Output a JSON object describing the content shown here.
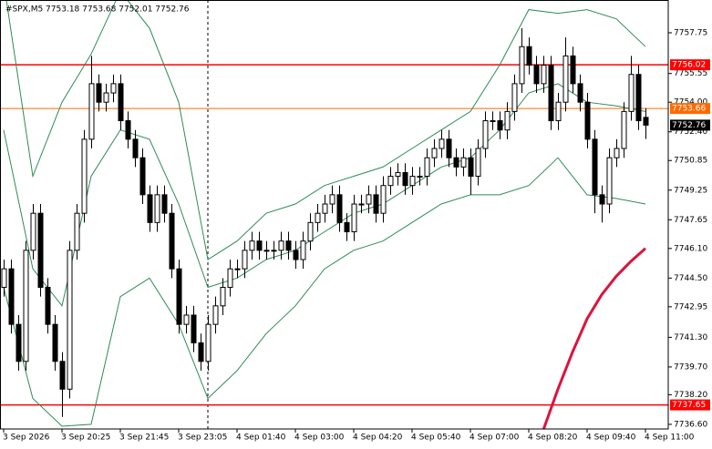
{
  "chart_data": {
    "type": "candlestick",
    "title": "#SPX,M5 7753.18 7753.68 7752.01 7752.76",
    "categories": [
      "3 Sep 2026",
      null,
      null,
      null,
      null,
      null,
      null,
      null,
      "3 Sep 20:25",
      null,
      null,
      null,
      null,
      null,
      null,
      null,
      "3 Sep 21:45",
      null,
      null,
      null,
      null,
      null,
      null,
      null,
      "3 Sep 23:05",
      null,
      null,
      null,
      null,
      null,
      null,
      null,
      "4 Sep 01:40",
      null,
      null,
      null,
      null,
      null,
      null,
      null,
      "4 Sep 03:00",
      null,
      null,
      null,
      null,
      null,
      null,
      null,
      "4 Sep 04:20",
      null,
      null,
      null,
      null,
      null,
      null,
      null,
      "4 Sep 05:40",
      null,
      null,
      null,
      null,
      null,
      null,
      null,
      "4 Sep 07:00",
      null,
      null,
      null,
      null,
      null,
      null,
      null,
      "4 Sep 08:20",
      null,
      null,
      null,
      null,
      null,
      null,
      null,
      "4 Sep 09:40",
      null,
      null,
      null,
      null,
      null,
      null,
      null,
      "4 Sep 11:00"
    ],
    "ohlc": [
      [
        7744,
        7745.5,
        7743.5,
        7745
      ],
      [
        7745,
        7745.5,
        7741.5,
        7742
      ],
      [
        7742,
        7742.5,
        7739.5,
        7740
      ],
      [
        7740,
        7746.5,
        7739.5,
        7746
      ],
      [
        7746,
        7748.5,
        7745.5,
        7748
      ],
      [
        7748,
        7748.5,
        7743.5,
        7744
      ],
      [
        7744,
        7744.5,
        7741.5,
        7742
      ],
      [
        7742,
        7742.5,
        7739.5,
        7740
      ],
      [
        7740,
        7740.5,
        7737,
        7738.5
      ],
      [
        7738.5,
        7746.5,
        7738,
        7746
      ],
      [
        7746,
        7748.5,
        7745.5,
        7748
      ],
      [
        7748,
        7752.5,
        7747.5,
        7752
      ],
      [
        7752,
        7756.5,
        7751.5,
        7755
      ],
      [
        7755,
        7755.5,
        7753.5,
        7754
      ],
      [
        7754,
        7755,
        7753.5,
        7754.5
      ],
      [
        7754.5,
        7755.5,
        7754,
        7755
      ],
      [
        7755,
        7755.5,
        7752.5,
        7753
      ],
      [
        7753,
        7753.5,
        7751.5,
        7752
      ],
      [
        7752,
        7752.5,
        7750.5,
        7751
      ],
      [
        7751,
        7751.5,
        7748.5,
        7749
      ],
      [
        7749,
        7749.5,
        7747,
        7747.5
      ],
      [
        7747.5,
        7749.5,
        7747,
        7749
      ],
      [
        7749,
        7749.5,
        7747.5,
        7748
      ],
      [
        7748,
        7748.5,
        7744.5,
        7745
      ],
      [
        7745,
        7745.5,
        7741.5,
        7742
      ],
      [
        7742,
        7743,
        7741.5,
        7742.5
      ],
      [
        7742.5,
        7743,
        7740.5,
        7741
      ],
      [
        7741,
        7741.5,
        7739.5,
        7740
      ],
      [
        7740,
        7742.5,
        7739.5,
        7742
      ],
      [
        7742,
        7743.5,
        7741.5,
        7743
      ],
      [
        7743,
        7744.5,
        7742.5,
        7744
      ],
      [
        7744,
        7745.5,
        7743.5,
        7745
      ],
      [
        7745,
        7745.5,
        7744.5,
        7745
      ],
      [
        7745,
        7746.5,
        7744.5,
        7746
      ],
      [
        7746,
        7747,
        7745.5,
        7746.5
      ],
      [
        7746.5,
        7747,
        7745.5,
        7746
      ],
      [
        7746,
        7746.5,
        7745.5,
        7746
      ],
      [
        7746,
        7746.5,
        7745.5,
        7746
      ],
      [
        7746,
        7747,
        7745.5,
        7746.5
      ],
      [
        7746.5,
        7747,
        7745.5,
        7746
      ],
      [
        7746,
        7746.5,
        7745,
        7745.5
      ],
      [
        7745.5,
        7747,
        7745,
        7746.5
      ],
      [
        7746.5,
        7748,
        7746,
        7747.5
      ],
      [
        7747.5,
        7748.5,
        7747,
        7748
      ],
      [
        7748,
        7749,
        7747.5,
        7748.5
      ],
      [
        7748.5,
        7749.5,
        7748,
        7749
      ],
      [
        7749,
        7749.5,
        7747,
        7747.5
      ],
      [
        7747.5,
        7748,
        7746.5,
        7747
      ],
      [
        7747,
        7749,
        7746.5,
        7748.5
      ],
      [
        7748.5,
        7749,
        7748,
        7748.5
      ],
      [
        7748.5,
        7749.5,
        7748,
        7749
      ],
      [
        7749,
        7749.5,
        7747.5,
        7748
      ],
      [
        7748,
        7750,
        7747.5,
        7749.5
      ],
      [
        7749.5,
        7750.5,
        7749,
        7750
      ],
      [
        7750,
        7750.7,
        7749.5,
        7750.2
      ],
      [
        7750.2,
        7750.7,
        7749,
        7749.5
      ],
      [
        7749.5,
        7750.5,
        7749,
        7750
      ],
      [
        7750,
        7750.5,
        7749.5,
        7750
      ],
      [
        7750,
        7751.5,
        7749.5,
        7751
      ],
      [
        7751,
        7752,
        7750.5,
        7751.5
      ],
      [
        7751.5,
        7752.5,
        7751,
        7752
      ],
      [
        7752,
        7752.5,
        7750.5,
        7751
      ],
      [
        7751,
        7751.5,
        7750,
        7750.5
      ],
      [
        7750.5,
        7751.5,
        7750,
        7751
      ],
      [
        7751,
        7751.5,
        7749,
        7750
      ],
      [
        7750,
        7752,
        7749.5,
        7751.5
      ],
      [
        7751.5,
        7753.5,
        7751,
        7753
      ],
      [
        7753,
        7753.5,
        7752.5,
        7753
      ],
      [
        7753,
        7753.5,
        7752,
        7752.5
      ],
      [
        7752.5,
        7754,
        7752,
        7753.5
      ],
      [
        7753.5,
        7755.5,
        7753,
        7755
      ],
      [
        7755,
        7758,
        7754.5,
        7757
      ],
      [
        7757,
        7757.5,
        7755.5,
        7756
      ],
      [
        7756,
        7756.5,
        7754.5,
        7755
      ],
      [
        7755,
        7756.5,
        7754.5,
        7756
      ],
      [
        7756,
        7756.5,
        7752.5,
        7753
      ],
      [
        7753,
        7754.5,
        7752.5,
        7754
      ],
      [
        7754,
        7757.5,
        7753.5,
        7756.5
      ],
      [
        7756.5,
        7757,
        7754.5,
        7755
      ],
      [
        7755,
        7755.5,
        7753.5,
        7754
      ],
      [
        7754,
        7754.5,
        7751.5,
        7752
      ],
      [
        7752,
        7752.5,
        7748,
        7749
      ],
      [
        7749,
        7749.5,
        7747.5,
        7748.5
      ],
      [
        7748.5,
        7751.5,
        7748,
        7751
      ],
      [
        7751,
        7752,
        7750.5,
        7751.5
      ],
      [
        7751.5,
        7754,
        7751,
        7753.5
      ],
      [
        7753.5,
        7756.5,
        7753,
        7755.5
      ],
      [
        7755.5,
        7756,
        7752.5,
        7753
      ],
      [
        7753.18,
        7753.68,
        7752.01,
        7752.76
      ]
    ],
    "lines": [
      {
        "color": "#2e8b57",
        "x": [
          0,
          4,
          8,
          12,
          16,
          20,
          24,
          28,
          32,
          36,
          40,
          44,
          48,
          52,
          56,
          60,
          64,
          68,
          72,
          76,
          80,
          84,
          88
        ],
        "values": [
          7760.5,
          7750,
          7754,
          7756.6,
          7760,
          7758,
          7754,
          7745.5,
          7746.5,
          7748,
          7748.5,
          7749.5,
          7750,
          7750.5,
          7751.5,
          7752.5,
          7753.5,
          7756,
          7759,
          7758.8,
          7759,
          7758.5,
          7757
        ]
      },
      {
        "color": "#2e8b57",
        "x": [
          0,
          4,
          8,
          12,
          16,
          20,
          24,
          28,
          32,
          36,
          40,
          44,
          48,
          52,
          56,
          60,
          64,
          68,
          72,
          76,
          80,
          84,
          88
        ],
        "values": [
          7752.5,
          7745,
          7743,
          7750,
          7752.5,
          7752,
          7748.5,
          7744,
          7744.5,
          7745.5,
          7746,
          7747,
          7748,
          7748.5,
          7749.5,
          7750.5,
          7751,
          7752.5,
          7754.5,
          7755,
          7754,
          7753.8,
          7753.5
        ]
      },
      {
        "color": "#2e8b57",
        "x": [
          0,
          4,
          8,
          12,
          16,
          20,
          24,
          28,
          32,
          36,
          40,
          44,
          48,
          52,
          56,
          60,
          64,
          68,
          72,
          76,
          80,
          84,
          88
        ],
        "values": [
          7744,
          7738,
          7736.5,
          7736.6,
          7743.5,
          7744.5,
          7742,
          7738,
          7739.5,
          7741.5,
          7743,
          7745,
          7746,
          7746.5,
          7747.5,
          7748.5,
          7749,
          7749,
          7749.5,
          7751,
          7749,
          7748.8,
          7748.5
        ]
      },
      {
        "color": "#dc143c",
        "x": [
          74,
          76,
          78,
          80,
          82,
          84,
          86,
          88
        ],
        "values": [
          7736.3,
          7738.5,
          7740.5,
          7742.3,
          7743.6,
          7744.6,
          7745.4,
          7746.1
        ]
      }
    ],
    "levels": [
      {
        "value": 7756.02,
        "color": "#ff0000"
      },
      {
        "value": 7753.66,
        "color": "#ff6a00"
      },
      {
        "value": 7737.65,
        "color": "#ff0000"
      }
    ],
    "last_price": 7752.76,
    "xlim": [
      -0.5,
      91.125
    ],
    "ylim": [
      7736.35,
      7759.52
    ],
    "yticks": [
      7757.75,
      7755.55,
      {
        "value": 7754,
        "label": "7754.00"
      },
      {
        "value": 7752.4,
        "label": "7752.40"
      },
      7750.85,
      7749.25,
      7747.65,
      {
        "value": 7746.1,
        "label": "7746.10"
      },
      {
        "value": 7744.5,
        "label": "7744.50"
      },
      7742.95,
      {
        "value": 7741.3,
        "label": "7741.30"
      },
      {
        "value": 7739.7,
        "label": "7739.70"
      },
      {
        "value": 7738.2,
        "label": "7738.20"
      },
      {
        "value": 7736.6,
        "label": "7736.60"
      }
    ],
    "separator_x": 28
  }
}
